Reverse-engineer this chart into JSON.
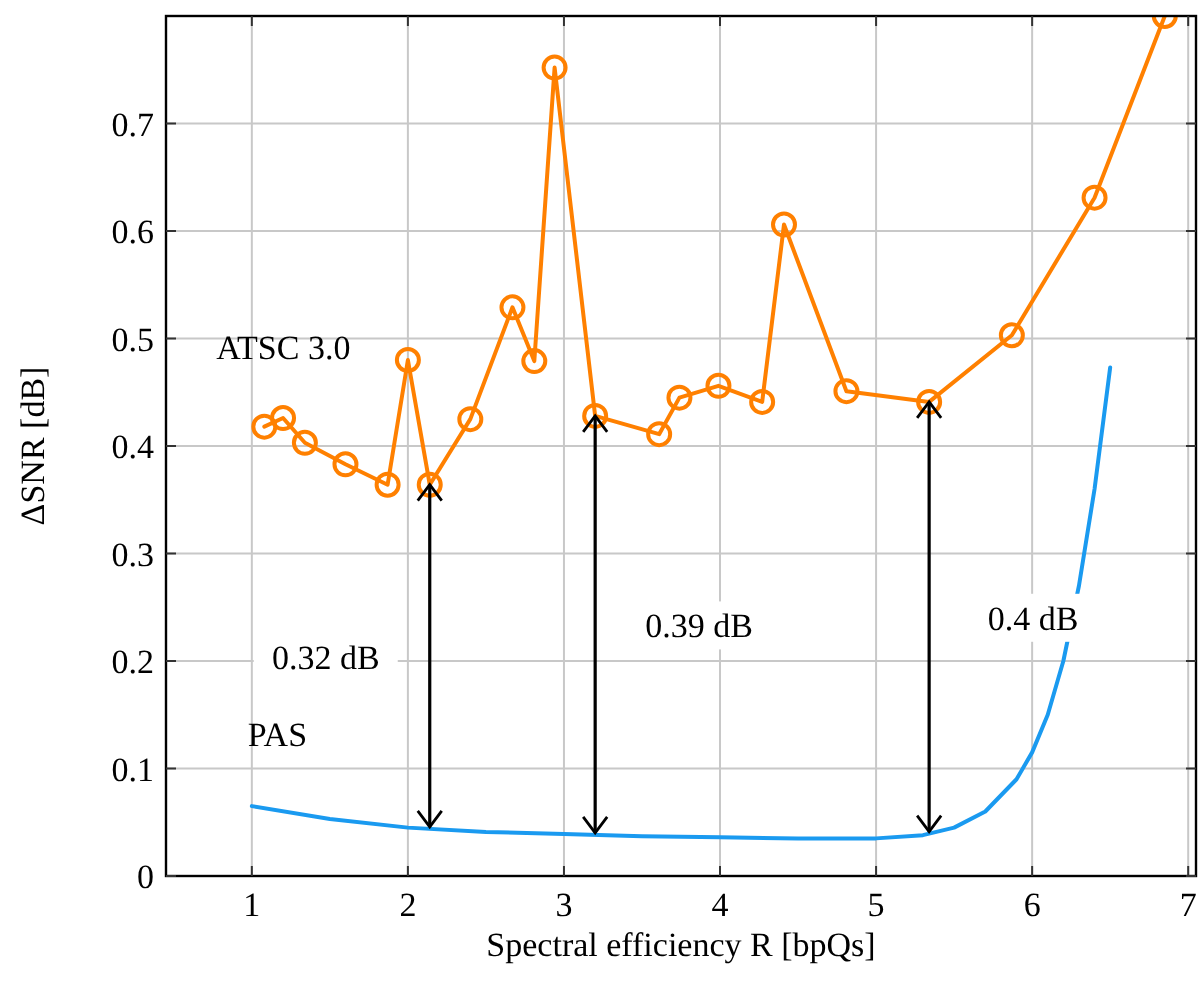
{
  "chart_data": {
    "type": "line",
    "xlabel": "Spectral efficiency R [bpQs]",
    "ylabel": "ΔSNR [dB]",
    "xlim": [
      0.45,
      7.05
    ],
    "ylim": [
      0,
      0.8
    ],
    "xticks": [
      1,
      2,
      3,
      4,
      5,
      6,
      7
    ],
    "yticks": [
      0,
      0.1,
      0.2,
      0.3,
      0.4,
      0.5,
      0.6,
      0.7
    ],
    "grid": true,
    "series": [
      {
        "name": "ATSC 3.0",
        "color": "#ff8000",
        "marker": "circle",
        "x": [
          1.08,
          1.2,
          1.34,
          1.6,
          1.87,
          2.0,
          2.14,
          2.4,
          2.67,
          2.81,
          2.94,
          3.2,
          3.61,
          3.74,
          3.99,
          4.27,
          4.41,
          4.81,
          5.34,
          5.87,
          6.4,
          6.85
        ],
        "values": [
          0.418,
          0.426,
          0.403,
          0.383,
          0.364,
          0.48,
          0.364,
          0.425,
          0.529,
          0.479,
          0.752,
          0.428,
          0.411,
          0.445,
          0.456,
          0.441,
          0.606,
          0.451,
          0.441,
          0.503,
          0.631,
          0.8
        ]
      },
      {
        "name": "PAS",
        "color": "#1a9af0",
        "marker": "none",
        "x": [
          1,
          1.5,
          2,
          2.5,
          3,
          3.5,
          4,
          4.5,
          5,
          5.3,
          5.5,
          5.7,
          5.9,
          6.0,
          6.1,
          6.2,
          6.3,
          6.4,
          6.5
        ],
        "values": [
          0.065,
          0.053,
          0.045,
          0.041,
          0.039,
          0.037,
          0.036,
          0.035,
          0.035,
          0.038,
          0.045,
          0.06,
          0.09,
          0.115,
          0.15,
          0.2,
          0.27,
          0.36,
          0.473
        ]
      }
    ],
    "annotations": [
      "0.32 dB",
      "0.39 dB",
      "0.4 dB"
    ]
  }
}
